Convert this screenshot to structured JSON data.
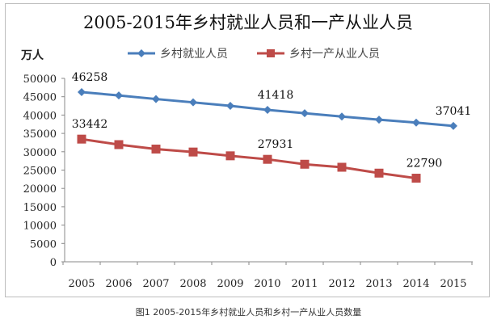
{
  "chart_data": {
    "type": "line",
    "title": "2005-2015年乡村就业人员和一产从业人员",
    "ylabel": "万人",
    "xlabel": "",
    "x": [
      "2005",
      "2006",
      "2007",
      "2008",
      "2009",
      "2010",
      "2011",
      "2012",
      "2013",
      "2014",
      "2015"
    ],
    "ylim": [
      0,
      50000
    ],
    "yticks": [
      0,
      5000,
      10000,
      15000,
      20000,
      25000,
      30000,
      35000,
      40000,
      45000,
      50000
    ],
    "grid": false,
    "legend_position": "top",
    "series": [
      {
        "name": "乡村就业人员",
        "color": "#4a7ebb",
        "marker": "diamond",
        "values": [
          46258,
          45348,
          44368,
          43461,
          42506,
          41418,
          40506,
          39602,
          38737,
          37943,
          37041
        ],
        "labels": {
          "0": "46258",
          "5": "41418",
          "10": "37041"
        }
      },
      {
        "name": "乡村一产从业人员",
        "color": "#be4b48",
        "marker": "square",
        "values": [
          33442,
          31941,
          30731,
          29923,
          28890,
          27931,
          26594,
          25773,
          24171,
          22790,
          null
        ],
        "labels": {
          "0": "33442",
          "5": "27931",
          "9": "22790"
        }
      }
    ]
  },
  "caption": "图1 2005-2015年乡村就业人员和乡村一产从业人员数量"
}
